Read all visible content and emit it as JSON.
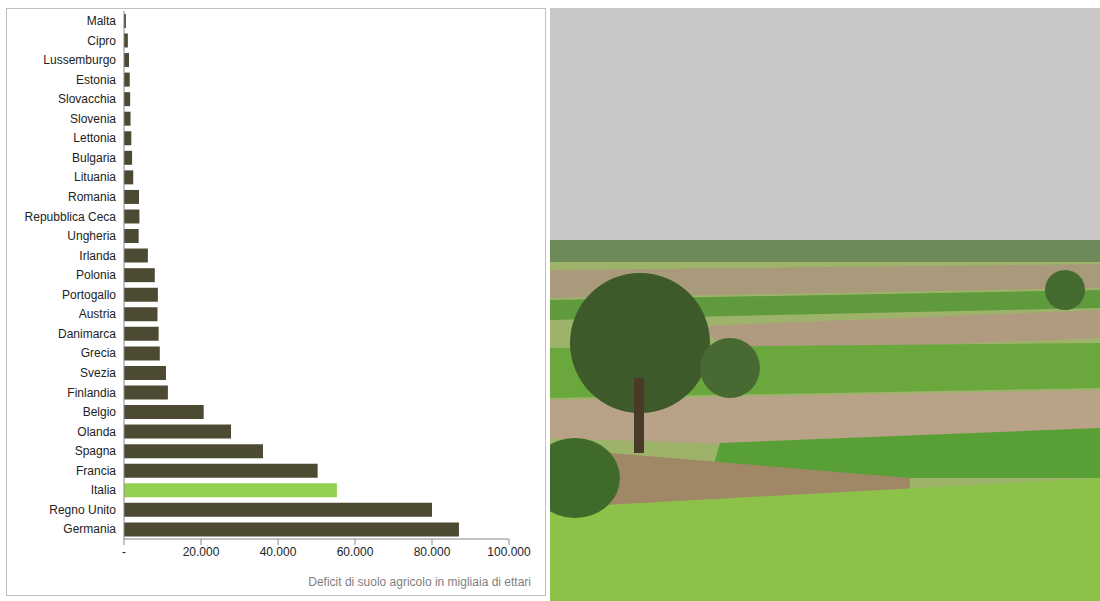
{
  "chart_data": {
    "type": "bar",
    "orientation": "horizontal",
    "x_label": "Deficit di suolo agricolo in migliaia di ettari",
    "categories": [
      "Malta",
      "Cipro",
      "Lussemburgo",
      "Estonia",
      "Slovacchia",
      "Slovenia",
      "Lettonia",
      "Bulgaria",
      "Lituania",
      "Romania",
      "Repubblica Ceca",
      "Ungheria",
      "Irlanda",
      "Polonia",
      "Portogallo",
      "Austria",
      "Danimarca",
      "Grecia",
      "Svezia",
      "Finlandia",
      "Belgio",
      "Olanda",
      "Spagna",
      "Francia",
      "Italia",
      "Regno Unito",
      "Germania"
    ],
    "values": [
      500,
      1000,
      1300,
      1500,
      1600,
      1700,
      1900,
      2100,
      2400,
      3900,
      4000,
      3800,
      6200,
      8000,
      8800,
      8700,
      9000,
      9300,
      10900,
      11400,
      20700,
      27800,
      36100,
      50300,
      55300,
      80000,
      87000
    ],
    "colors": [
      "#4d4a34",
      "#4d4a34",
      "#4d4a34",
      "#4d4a34",
      "#4d4a34",
      "#4d4a34",
      "#4d4a34",
      "#4d4a34",
      "#4d4a34",
      "#4d4a34",
      "#4d4a34",
      "#4d4a34",
      "#4d4a34",
      "#4d4a34",
      "#4d4a34",
      "#4d4a34",
      "#4d4a34",
      "#4d4a34",
      "#4d4a34",
      "#4d4a34",
      "#4d4a34",
      "#4d4a34",
      "#4d4a34",
      "#4d4a34",
      "#92d050",
      "#4d4a34",
      "#4d4a34"
    ],
    "xlim": [
      0,
      100000
    ],
    "xticks": [
      {
        "value": 0,
        "label": "-"
      },
      {
        "value": 20000,
        "label": "20.000"
      },
      {
        "value": 40000,
        "label": "40.000"
      },
      {
        "value": 60000,
        "label": "60.000"
      },
      {
        "value": 80000,
        "label": "80.000"
      },
      {
        "value": 100000,
        "label": "100.000"
      }
    ],
    "grid": false,
    "tick_labels": true
  }
}
